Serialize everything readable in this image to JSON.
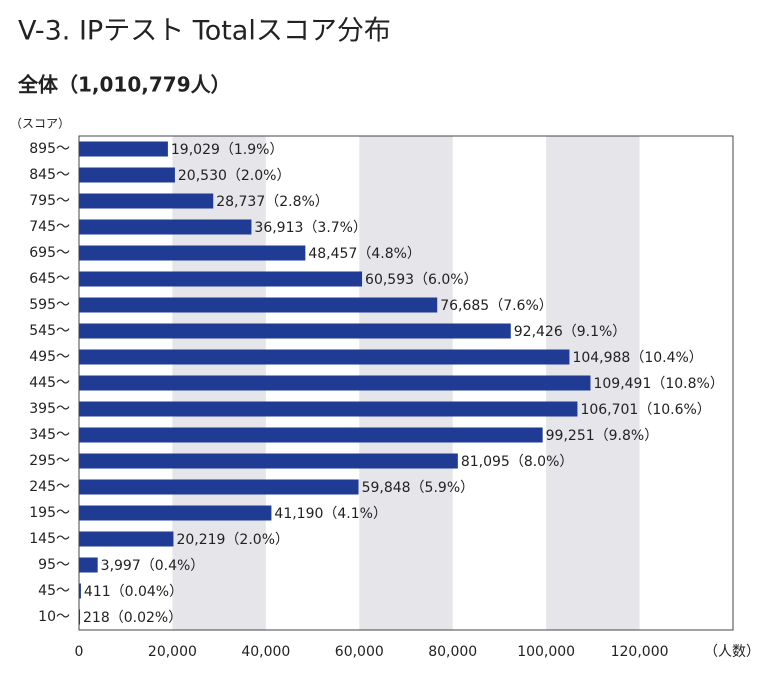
{
  "chart_data": {
    "type": "hbar",
    "title": "V-3. IPテスト Totalスコア分布",
    "subtitle": "全体（1,010,779人）",
    "y_label": "（スコア）",
    "x_label": "（人数）",
    "categories": [
      "895〜",
      "845〜",
      "795〜",
      "745〜",
      "695〜",
      "645〜",
      "595〜",
      "545〜",
      "495〜",
      "445〜",
      "395〜",
      "345〜",
      "295〜",
      "245〜",
      "195〜",
      "145〜",
      "95〜",
      "45〜",
      "10〜"
    ],
    "values": [
      19029,
      20530,
      28737,
      36913,
      48457,
      60593,
      76685,
      92426,
      104988,
      109491,
      106701,
      99251,
      81095,
      59848,
      41190,
      20219,
      3997,
      411,
      218
    ],
    "value_labels": [
      "19,029（1.9%）",
      "20,530（2.0%）",
      "28,737（2.8%）",
      "36,913（3.7%）",
      "48,457（4.8%）",
      "60,593（6.0%）",
      "76,685（7.6%）",
      "92,426（9.1%）",
      "104,988（10.4%）",
      "109,491（10.8%）",
      "106,701（10.6%）",
      "99,251（9.8%）",
      "81,095（8.0%）",
      "59,848（5.9%）",
      "41,190（4.1%）",
      "20,219（2.0%）",
      "3,997（0.4%）",
      "411（0.04%）",
      "218（0.02%）"
    ],
    "color": "#1f3b94",
    "xlim": [
      0,
      140000
    ],
    "xticks": [
      0,
      {
        "value": 20000,
        "label": "20,000"
      },
      {
        "value": 40000,
        "label": "40,000"
      },
      {
        "value": 60000,
        "label": "60,000"
      },
      {
        "value": 80000,
        "label": "80,000"
      },
      {
        "value": 100000,
        "label": "100,000"
      },
      {
        "value": 120000,
        "label": "120,000"
      }
    ],
    "band_shading": true
  }
}
